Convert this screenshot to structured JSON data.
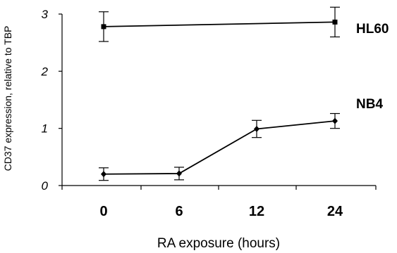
{
  "chart_data": {
    "type": "line",
    "x_categories": [
      "0",
      "6",
      "12",
      "24"
    ],
    "xlabel": "RA exposure (hours)",
    "ylabel": "CD37 expression, relative to TBP",
    "ylim": [
      0,
      3
    ],
    "yticks": [
      "0",
      "1",
      "2",
      "3"
    ],
    "grid": false,
    "series": [
      {
        "name": "HL60",
        "marker": "square",
        "points": [
          {
            "x": "0",
            "y": 2.78,
            "err": 0.26
          },
          {
            "x": "24",
            "y": 2.86,
            "err": 0.26
          }
        ]
      },
      {
        "name": "NB4",
        "marker": "diamond",
        "points": [
          {
            "x": "0",
            "y": 0.2,
            "err": 0.11
          },
          {
            "x": "6",
            "y": 0.21,
            "err": 0.11
          },
          {
            "x": "12",
            "y": 0.99,
            "err": 0.15
          },
          {
            "x": "24",
            "y": 1.13,
            "err": 0.13
          }
        ]
      }
    ],
    "colors": {
      "line": "#000000",
      "background": "#ffffff"
    }
  }
}
